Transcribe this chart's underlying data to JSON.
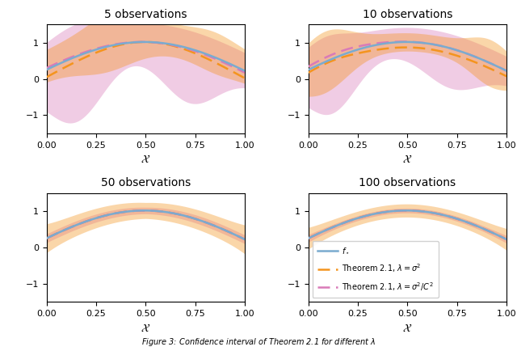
{
  "titles": [
    "5 observations",
    "10 observations",
    "50 observations",
    "100 observations"
  ],
  "xlabel": "$\\mathcal{X}$",
  "xlim": [
    0.0,
    1.0
  ],
  "ylim": [
    -1.5,
    1.5
  ],
  "yticks": [
    -1,
    0,
    1
  ],
  "xticks": [
    0.0,
    0.25,
    0.5,
    0.75,
    1.0
  ],
  "color_true": "#7aabcf",
  "color_orange": "#f4941e",
  "color_pink": "#d97ab8",
  "fill_orange_alpha": 0.38,
  "fill_pink_alpha": 0.38,
  "legend_labels": [
    "$f_\\star$",
    "Theorem 2.1, $\\lambda = \\sigma^2$",
    "Theorem 2.1, $\\lambda = \\sigma^2/C^2$"
  ]
}
